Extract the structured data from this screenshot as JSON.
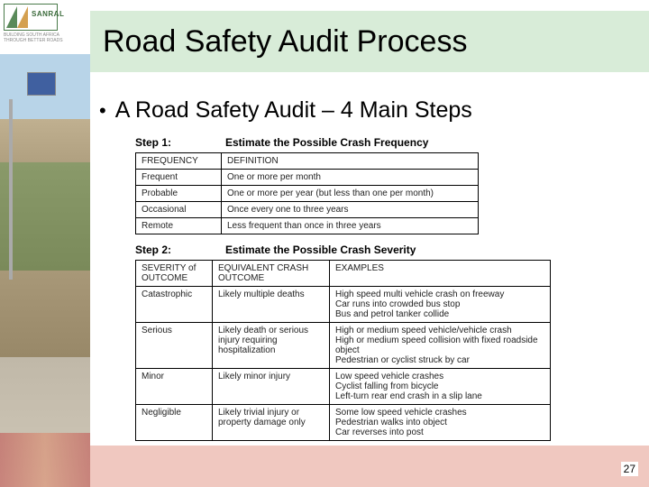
{
  "logo": {
    "brand": "SANRAL",
    "tagline": "BUILDING SOUTH AFRICA THROUGH BETTER ROADS"
  },
  "title": "Road Safety Audit Process",
  "bullet": "A Road Safety Audit – 4 Main Steps",
  "step1": {
    "label": "Step 1:",
    "heading": "Estimate the Possible Crash Frequency",
    "columns": [
      "FREQUENCY",
      "DEFINITION"
    ],
    "rows": [
      [
        "Frequent",
        "One or more per month"
      ],
      [
        "Probable",
        "One or more per year (but less than one per month)"
      ],
      [
        "Occasional",
        "Once every one to three years"
      ],
      [
        "Remote",
        "Less frequent than once in three years"
      ]
    ]
  },
  "step2": {
    "label": "Step 2:",
    "heading": "Estimate the Possible Crash Severity",
    "columns": [
      "SEVERITY of OUTCOME",
      "EQUIVALENT CRASH OUTCOME",
      "EXAMPLES"
    ],
    "rows": [
      [
        "Catastrophic",
        "Likely multiple deaths",
        "High speed multi vehicle crash on freeway\nCar runs into crowded bus stop\nBus and petrol tanker collide"
      ],
      [
        "Serious",
        "Likely death or serious injury requiring hospitalization",
        "High or medium speed vehicle/vehicle crash\nHigh or medium speed collision with fixed roadside object\nPedestrian or cyclist struck by car"
      ],
      [
        "Minor",
        "Likely minor injury",
        "Low speed vehicle crashes\nCyclist falling from bicycle\nLeft-turn rear end crash in a slip lane"
      ],
      [
        "Negligible",
        "Likely trivial injury or property damage only",
        "Some low speed vehicle crashes\nPedestrian walks into object\nCar reverses into post"
      ]
    ]
  },
  "page_number": "27",
  "colors": {
    "title_band": "#d8ecd8",
    "footer_band": "#f0c8c0",
    "border": "#000000",
    "text": "#000000"
  }
}
